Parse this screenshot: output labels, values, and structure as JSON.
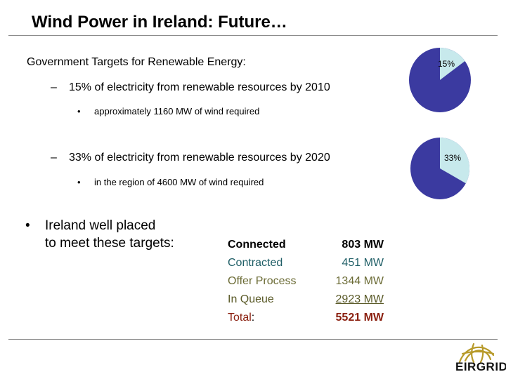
{
  "title": "Wind Power in Ireland: Future…",
  "intro": "Government Targets for Renewable Energy:",
  "targets": [
    {
      "dash": "–",
      "text": "15% of electricity from renewable resources by 2010",
      "sub_bullet": "•",
      "sub": "approximately 1160 MW of wind required",
      "pie_label": "15%",
      "percent": 15
    },
    {
      "dash": "–",
      "text": "33% of electricity from renewable resources by 2020",
      "sub_bullet": "•",
      "sub": "in the region of 4600 MW of wind required",
      "pie_label": "33%",
      "percent": 33
    }
  ],
  "main_bullet": {
    "mark": "•",
    "line1": "Ireland well placed",
    "line2": "to meet these targets:"
  },
  "status_table": [
    {
      "label": "Connected",
      "value": "803 MW"
    },
    {
      "label": "Contracted",
      "value": "451 MW"
    },
    {
      "label": "Offer Process",
      "value": "1344 MW"
    },
    {
      "label": "In Queue",
      "value": "2923 MW"
    },
    {
      "label": "Total",
      "colon": ":",
      "value": "5521 MW"
    }
  ],
  "colors": {
    "pie_main": "#3b3aa0",
    "pie_slice": "#c7e9ec",
    "logo_gold": "#b79a2a"
  },
  "logo": {
    "text": "EIRGRID",
    "icon": "eirgrid-globe-icon"
  }
}
